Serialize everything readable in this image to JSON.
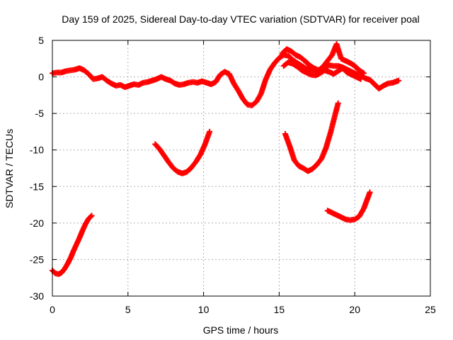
{
  "chart_data": {
    "type": "scatter",
    "title": "Day 159 of 2025, Sidereal Day-to-day VTEC variation (SDTVAR) for receiver poal",
    "xlabel": "GPS time / hours",
    "ylabel": "SDTVAR / TECUs",
    "xlim": [
      0,
      25
    ],
    "ylim": [
      -30,
      5
    ],
    "xticks": [
      "0",
      "5",
      "10",
      "15",
      "20",
      "25"
    ],
    "yticks": [
      "5",
      "0",
      "-5",
      "-10",
      "-15",
      "-20",
      "-25",
      "-30"
    ],
    "grid": true,
    "marker": "plus",
    "color": "#ff0000",
    "series": [
      {
        "name": "main-track",
        "x": [
          0.0,
          0.3,
          0.6,
          0.9,
          1.2,
          1.5,
          1.8,
          2.1,
          2.4,
          2.7,
          3.0,
          3.3,
          3.6,
          3.9,
          4.2,
          4.5,
          4.8,
          5.1,
          5.4,
          5.7,
          6.0,
          6.3,
          6.6,
          6.9,
          7.2,
          7.5,
          7.8,
          8.1,
          8.4,
          8.7,
          9.0,
          9.3,
          9.6,
          9.9,
          10.2,
          10.5,
          10.8,
          11.1,
          11.4,
          11.7,
          12.0,
          12.3,
          12.6,
          12.9,
          13.2,
          13.5,
          13.8,
          14.1,
          14.4,
          14.7,
          15.0,
          15.3,
          15.6,
          15.9,
          16.2,
          16.5,
          16.8,
          17.1,
          17.4,
          17.7,
          18.0,
          18.3,
          18.6,
          18.9,
          19.2,
          19.5,
          19.8,
          20.1,
          20.4,
          20.7,
          21.0,
          21.3,
          21.6,
          21.9,
          22.2,
          22.5,
          22.9
        ],
        "y": [
          0.5,
          0.6,
          0.6,
          0.8,
          0.9,
          1.0,
          1.2,
          0.9,
          0.4,
          -0.3,
          -0.2,
          0.0,
          -0.5,
          -0.9,
          -1.2,
          -1.1,
          -1.4,
          -1.2,
          -1.0,
          -1.1,
          -0.8,
          -0.7,
          -0.5,
          -0.3,
          0.0,
          -0.3,
          -0.5,
          -0.9,
          -1.1,
          -1.0,
          -0.8,
          -0.7,
          -0.8,
          -0.6,
          -0.8,
          -1.0,
          -0.7,
          0.3,
          0.7,
          0.4,
          -0.9,
          -1.9,
          -3.0,
          -3.8,
          -3.9,
          -3.4,
          -2.3,
          -0.4,
          1.0,
          1.9,
          2.6,
          3.0,
          2.9,
          2.3,
          1.9,
          1.5,
          1.1,
          0.9,
          0.8,
          1.0,
          1.3,
          1.6,
          1.5,
          1.5,
          1.3,
          1.0,
          0.7,
          0.4,
          0.2,
          -0.2,
          -0.4,
          -1.0,
          -1.6,
          -1.2,
          -0.9,
          -0.8,
          -0.5
        ]
      },
      {
        "name": "upper-band",
        "x": [
          15.2,
          15.5,
          15.8,
          16.1,
          16.4,
          16.7,
          17.0,
          17.3,
          17.6,
          17.9,
          18.2,
          18.5,
          18.8,
          19.1,
          19.4,
          19.7,
          20.0,
          20.3,
          20.6
        ],
        "y": [
          3.2,
          3.8,
          3.5,
          3.0,
          2.7,
          2.2,
          1.6,
          1.2,
          0.9,
          1.4,
          2.2,
          3.0,
          4.5,
          2.5,
          2.2,
          1.9,
          1.5,
          0.9,
          0.5
        ]
      },
      {
        "name": "lower-band",
        "x": [
          15.3,
          15.6,
          15.9,
          16.2,
          16.5,
          16.8,
          17.1,
          17.4,
          17.7,
          18.0,
          18.3,
          18.6,
          18.9,
          19.2,
          19.5,
          19.8,
          20.1,
          20.4
        ],
        "y": [
          1.5,
          2.0,
          1.8,
          1.4,
          0.9,
          0.6,
          0.3,
          0.2,
          0.5,
          0.9,
          0.7,
          0.4,
          0.8,
          1.2,
          0.6,
          0.3,
          0.0,
          -0.3
        ]
      },
      {
        "name": "arc-0-3h",
        "x": [
          0.0,
          0.2,
          0.4,
          0.6,
          0.8,
          1.0,
          1.2,
          1.4,
          1.6,
          1.8,
          2.0,
          2.2,
          2.4,
          2.6
        ],
        "y": [
          -26.5,
          -26.9,
          -27.0,
          -26.8,
          -26.3,
          -25.6,
          -24.8,
          -23.8,
          -22.9,
          -22.0,
          -21.0,
          -20.1,
          -19.4,
          -19.0
        ]
      },
      {
        "name": "arc-7-10h",
        "x": [
          6.8,
          7.1,
          7.4,
          7.7,
          8.0,
          8.3,
          8.6,
          8.9,
          9.2,
          9.5,
          9.8,
          10.1,
          10.4
        ],
        "y": [
          -9.2,
          -9.9,
          -10.8,
          -11.7,
          -12.5,
          -13.0,
          -13.2,
          -13.0,
          -12.4,
          -11.6,
          -10.6,
          -9.2,
          -7.5
        ]
      },
      {
        "name": "arc-15-19h",
        "x": [
          15.4,
          15.7,
          16.0,
          16.3,
          16.6,
          16.9,
          17.2,
          17.5,
          17.8,
          18.1,
          18.4,
          18.7,
          18.9
        ],
        "y": [
          -7.8,
          -9.5,
          -11.4,
          -12.2,
          -12.5,
          -12.9,
          -12.6,
          -12.0,
          -11.2,
          -9.7,
          -7.6,
          -5.2,
          -3.6
        ]
      },
      {
        "name": "arc-18-21h",
        "x": [
          18.2,
          18.5,
          18.8,
          19.1,
          19.4,
          19.7,
          20.0,
          20.3,
          20.6,
          20.8,
          21.0
        ],
        "y": [
          -18.3,
          -18.6,
          -18.9,
          -19.2,
          -19.5,
          -19.6,
          -19.5,
          -19.1,
          -18.0,
          -16.9,
          -15.8
        ]
      }
    ]
  }
}
